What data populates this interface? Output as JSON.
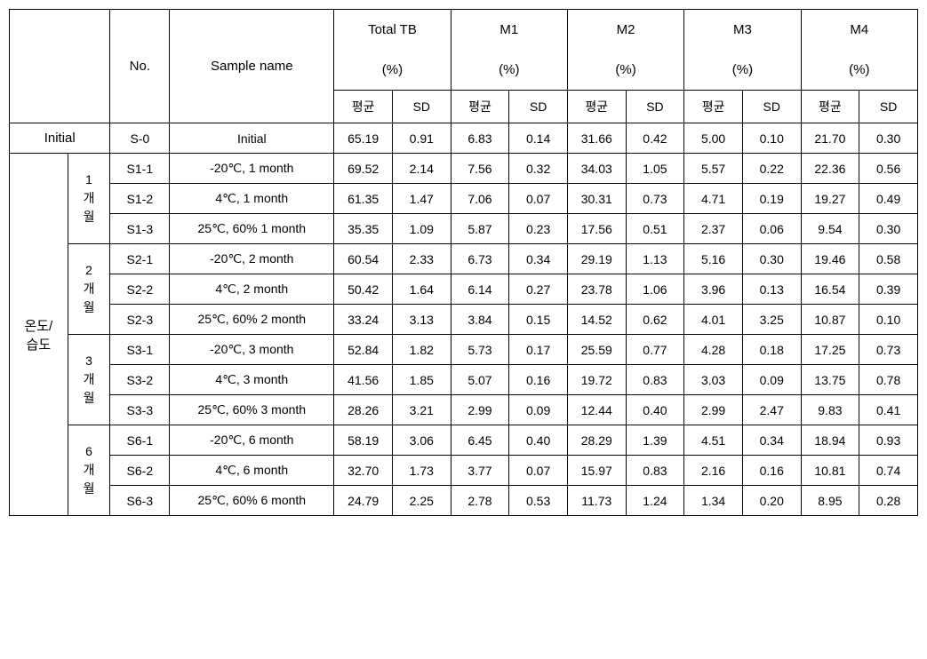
{
  "headers": {
    "no": "No.",
    "sample_name": "Sample name",
    "total_tb": "Total TB",
    "m1": "M1",
    "m2": "M2",
    "m3": "M3",
    "m4": "M4",
    "pct": "(%)",
    "mean": "평균",
    "sd": "SD"
  },
  "rowgroups": {
    "initial": "Initial",
    "temp_humidity": "온도/\n습도",
    "p1": "1\n개\n월",
    "p2": "2\n개\n월",
    "p3": "3\n개\n월",
    "p6": "6\n개\n월"
  },
  "rows": {
    "initial": {
      "no": "S-0",
      "sample": "Initial",
      "tb_m": "65.19",
      "tb_s": "0.91",
      "m1_m": "6.83",
      "m1_s": "0.14",
      "m2_m": "31.66",
      "m2_s": "0.42",
      "m3_m": "5.00",
      "m3_s": "0.10",
      "m4_m": "21.70",
      "m4_s": "0.30"
    },
    "r11": {
      "no": "S1-1",
      "sample": "-20℃, 1 month",
      "tb_m": "69.52",
      "tb_s": "2.14",
      "m1_m": "7.56",
      "m1_s": "0.32",
      "m2_m": "34.03",
      "m2_s": "1.05",
      "m3_m": "5.57",
      "m3_s": "0.22",
      "m4_m": "22.36",
      "m4_s": "0.56"
    },
    "r12": {
      "no": "S1-2",
      "sample": "4℃, 1 month",
      "tb_m": "61.35",
      "tb_s": "1.47",
      "m1_m": "7.06",
      "m1_s": "0.07",
      "m2_m": "30.31",
      "m2_s": "0.73",
      "m3_m": "4.71",
      "m3_s": "0.19",
      "m4_m": "19.27",
      "m4_s": "0.49"
    },
    "r13": {
      "no": "S1-3",
      "sample": "25℃, 60% 1 month",
      "tb_m": "35.35",
      "tb_s": "1.09",
      "m1_m": "5.87",
      "m1_s": "0.23",
      "m2_m": "17.56",
      "m2_s": "0.51",
      "m3_m": "2.37",
      "m3_s": "0.06",
      "m4_m": "9.54",
      "m4_s": "0.30"
    },
    "r21": {
      "no": "S2-1",
      "sample": "-20℃, 2 month",
      "tb_m": "60.54",
      "tb_s": "2.33",
      "m1_m": "6.73",
      "m1_s": "0.34",
      "m2_m": "29.19",
      "m2_s": "1.13",
      "m3_m": "5.16",
      "m3_s": "0.30",
      "m4_m": "19.46",
      "m4_s": "0.58"
    },
    "r22": {
      "no": "S2-2",
      "sample": "4℃, 2 month",
      "tb_m": "50.42",
      "tb_s": "1.64",
      "m1_m": "6.14",
      "m1_s": "0.27",
      "m2_m": "23.78",
      "m2_s": "1.06",
      "m3_m": "3.96",
      "m3_s": "0.13",
      "m4_m": "16.54",
      "m4_s": "0.39"
    },
    "r23": {
      "no": "S2-3",
      "sample": "25℃, 60% 2 month",
      "tb_m": "33.24",
      "tb_s": "3.13",
      "m1_m": "3.84",
      "m1_s": "0.15",
      "m2_m": "14.52",
      "m2_s": "0.62",
      "m3_m": "4.01",
      "m3_s": "3.25",
      "m4_m": "10.87",
      "m4_s": "0.10"
    },
    "r31": {
      "no": "S3-1",
      "sample": "-20℃, 3 month",
      "tb_m": "52.84",
      "tb_s": "1.82",
      "m1_m": "5.73",
      "m1_s": "0.17",
      "m2_m": "25.59",
      "m2_s": "0.77",
      "m3_m": "4.28",
      "m3_s": "0.18",
      "m4_m": "17.25",
      "m4_s": "0.73"
    },
    "r32": {
      "no": "S3-2",
      "sample": "4℃, 3 month",
      "tb_m": "41.56",
      "tb_s": "1.85",
      "m1_m": "5.07",
      "m1_s": "0.16",
      "m2_m": "19.72",
      "m2_s": "0.83",
      "m3_m": "3.03",
      "m3_s": "0.09",
      "m4_m": "13.75",
      "m4_s": "0.78"
    },
    "r33": {
      "no": "S3-3",
      "sample": "25℃, 60% 3 month",
      "tb_m": "28.26",
      "tb_s": "3.21",
      "m1_m": "2.99",
      "m1_s": "0.09",
      "m2_m": "12.44",
      "m2_s": "0.40",
      "m3_m": "2.99",
      "m3_s": "2.47",
      "m4_m": "9.83",
      "m4_s": "0.41"
    },
    "r61": {
      "no": "S6-1",
      "sample": "-20℃, 6 month",
      "tb_m": "58.19",
      "tb_s": "3.06",
      "m1_m": "6.45",
      "m1_s": "0.40",
      "m2_m": "28.29",
      "m2_s": "1.39",
      "m3_m": "4.51",
      "m3_s": "0.34",
      "m4_m": "18.94",
      "m4_s": "0.93"
    },
    "r62": {
      "no": "S6-2",
      "sample": "4℃, 6 month",
      "tb_m": "32.70",
      "tb_s": "1.73",
      "m1_m": "3.77",
      "m1_s": "0.07",
      "m2_m": "15.97",
      "m2_s": "0.83",
      "m3_m": "2.16",
      "m3_s": "0.16",
      "m4_m": "10.81",
      "m4_s": "0.74"
    },
    "r63": {
      "no": "S6-3",
      "sample": "25℃, 60% 6 month",
      "tb_m": "24.79",
      "tb_s": "2.25",
      "m1_m": "2.78",
      "m1_s": "0.53",
      "m2_m": "11.73",
      "m2_s": "1.24",
      "m3_m": "1.34",
      "m3_s": "0.20",
      "m4_m": "8.95",
      "m4_s": "0.28"
    }
  }
}
